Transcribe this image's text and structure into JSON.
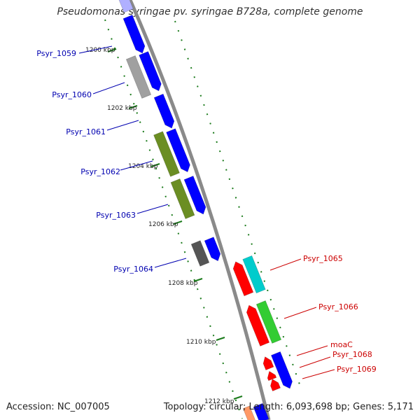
{
  "title": "Pseudomonas syringae pv. syringae B728a, complete genome",
  "footer": {
    "accession_label": "Accession:",
    "accession": "NC_007005",
    "topology_label": "Topology:",
    "topology": "circular;",
    "length_label": "Length:",
    "length": "6,093,698 bp;",
    "genes_label": "Genes:",
    "genes": "5,171"
  },
  "colors": {
    "forward_cds": "#0000ff",
    "reverse_cds": "#ff0000",
    "gene_label_left": "#0000b0",
    "gene_label_right": "#cc0000",
    "backbone": "#888888",
    "tick": "#1a7a1a",
    "olive": "#6b8e23",
    "cyan": "#00cccc",
    "green": "#33cc33",
    "grey": "#a0a0a0"
  },
  "ticks": [
    {
      "label": "1200 kbp"
    },
    {
      "label": "1202 kbp"
    },
    {
      "label": "1204 kbp"
    },
    {
      "label": "1206 kbp"
    },
    {
      "label": "1208 kbp"
    },
    {
      "label": "1210 kbp"
    },
    {
      "label": "1212 kbp"
    }
  ],
  "genes_left": [
    {
      "name": "Psyr_1059"
    },
    {
      "name": "Psyr_1060"
    },
    {
      "name": "Psyr_1061"
    },
    {
      "name": "Psyr_1062"
    },
    {
      "name": "Psyr_1063"
    },
    {
      "name": "Psyr_1064"
    }
  ],
  "genes_right": [
    {
      "name": "Psyr_1065"
    },
    {
      "name": "Psyr_1066"
    },
    {
      "name": "moaC"
    },
    {
      "name": "Psyr_1068"
    },
    {
      "name": "Psyr_1069"
    }
  ]
}
